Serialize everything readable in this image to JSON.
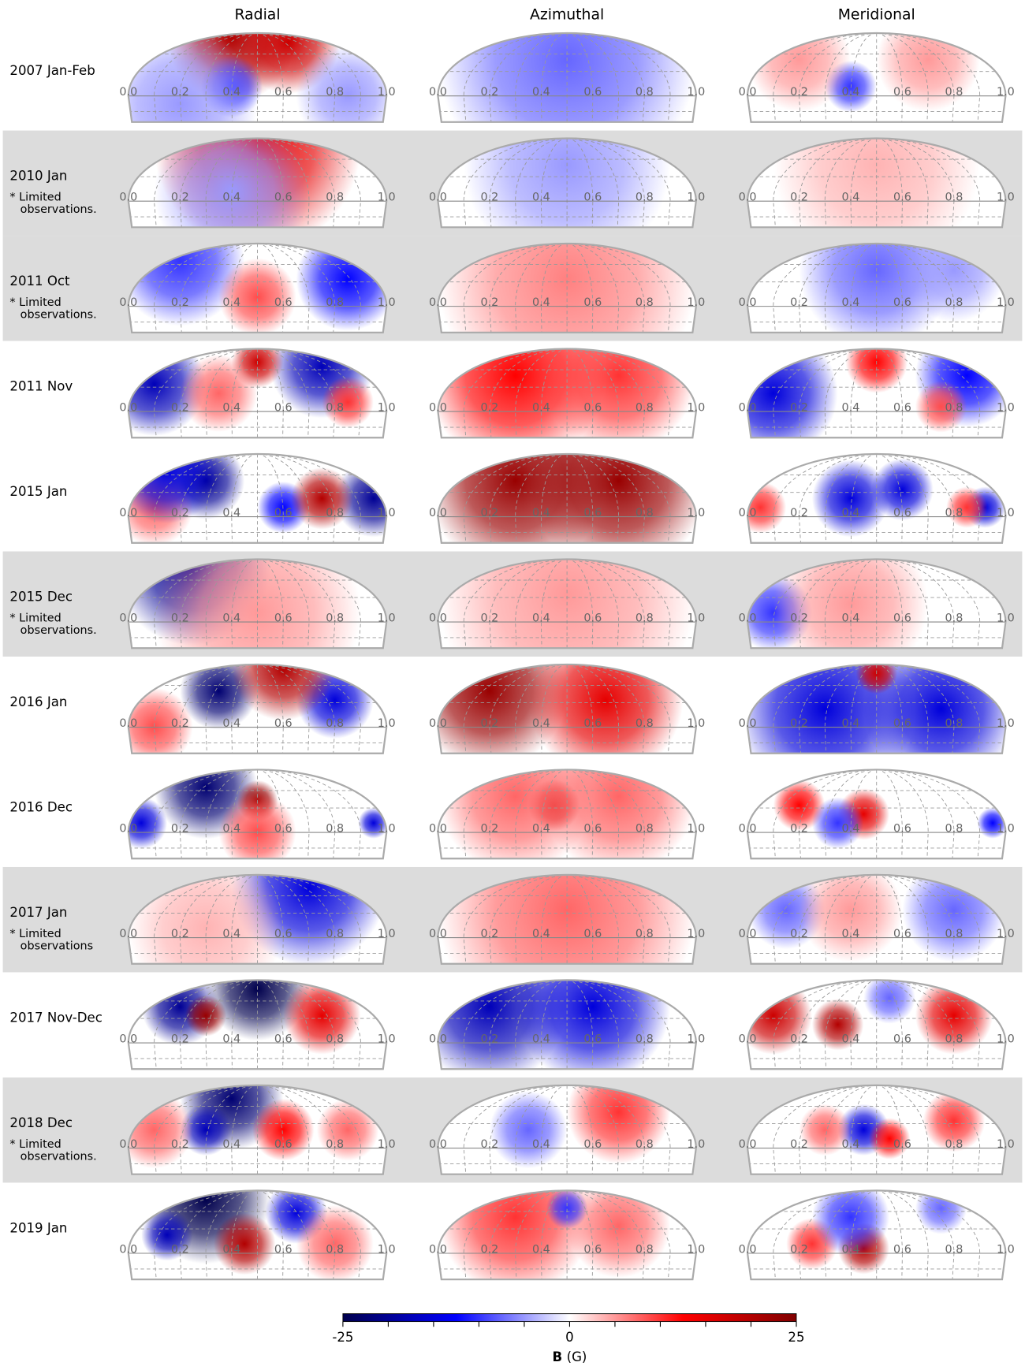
{
  "chart_data": {
    "type": "map-grid",
    "columns": [
      "Radial",
      "Azimuthal",
      "Meridional"
    ],
    "rows": [
      {
        "label": "2007 Jan-Feb"
      },
      {
        "label": "2010 Jan",
        "note": [
          "* Limited",
          "observations."
        ]
      },
      {
        "label": "2011 Oct",
        "note": [
          "* Limited",
          "observations."
        ]
      },
      {
        "label": "2011 Nov"
      },
      {
        "label": "2015 Jan"
      },
      {
        "label": "2015 Dec",
        "note": [
          "* Limited",
          "observations."
        ]
      },
      {
        "label": "2016 Jan"
      },
      {
        "label": "2016 Dec"
      },
      {
        "label": "2017 Jan",
        "note": [
          "* Limited",
          "observations"
        ]
      },
      {
        "label": "2017 Nov-Dec"
      },
      {
        "label": "2018 Dec",
        "note": [
          "* Limited",
          "observations."
        ]
      },
      {
        "label": "2019 Jan"
      }
    ],
    "xlim": [
      0,
      1
    ],
    "xticks": [
      {
        "value": 0,
        "label": "0.0"
      },
      0.2,
      0.4,
      0.6,
      0.8,
      {
        "value": 1,
        "label": "1.0"
      }
    ],
    "colorbar": {
      "clim": [
        -25,
        25
      ],
      "ticks": [
        -25,
        0,
        25
      ],
      "minor_ticks": [
        -20,
        -15,
        -10,
        -5,
        5,
        10,
        15,
        20
      ],
      "label_symbol": "B",
      "label_unit": "(G)"
    }
  }
}
